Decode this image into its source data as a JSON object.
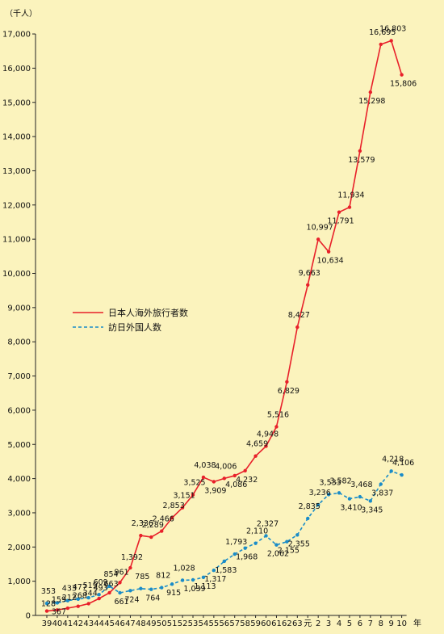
{
  "chart_data": {
    "type": "line",
    "unit_label": "（千人）",
    "xunit": "年",
    "categories": [
      "39",
      "40",
      "41",
      "42",
      "43",
      "44",
      "45",
      "46",
      "47",
      "48",
      "49",
      "50",
      "51",
      "52",
      "53",
      "54",
      "55",
      "56",
      "57",
      "58",
      "59",
      "60",
      "61",
      "62",
      "63",
      "元",
      "2",
      "3",
      "4",
      "5",
      "6",
      "7",
      "8",
      "9",
      "10"
    ],
    "ylim": [
      0,
      17000
    ],
    "yticks": [
      {
        "v": 0,
        "t": "0"
      },
      {
        "v": 1000,
        "t": "1,000"
      },
      {
        "v": 2000,
        "t": "2,000"
      },
      {
        "v": 3000,
        "t": "3,000"
      },
      {
        "v": 4000,
        "t": "4,000"
      },
      {
        "v": 5000,
        "t": "5,000"
      },
      {
        "v": 6000,
        "t": "6,000"
      },
      {
        "v": 7000,
        "t": "7,000"
      },
      {
        "v": 8000,
        "t": "8,000"
      },
      {
        "v": 9000,
        "t": "9,000"
      },
      {
        "v": 10000,
        "t": "10,000"
      },
      {
        "v": 11000,
        "t": "11,000"
      },
      {
        "v": 12000,
        "t": "12,000"
      },
      {
        "v": 13000,
        "t": "13,000"
      },
      {
        "v": 14000,
        "t": "14,000"
      },
      {
        "v": 15000,
        "t": "15,000"
      },
      {
        "v": 16000,
        "t": "16,000"
      },
      {
        "v": 17000,
        "t": "17,000"
      }
    ],
    "series": [
      {
        "name": "日本人海外旅行者数",
        "color": "#e8202a",
        "style": "solid",
        "values": [
          128,
          159,
          212,
          268,
          344,
          493,
          663,
          961,
          1392,
          2336,
          2289,
          2466,
          2853,
          3151,
          3525,
          4038,
          3909,
          4006,
          4086,
          4232,
          4659,
          4948,
          5516,
          6829,
          8427,
          9663,
          10997,
          10634,
          11791,
          11934,
          13579,
          15298,
          16695,
          16803,
          15806
        ],
        "labels": [
          "128",
          "159",
          "212",
          "268",
          "344",
          "493",
          "663",
          "961",
          "1,392",
          "2,336",
          "2,289",
          "2,466",
          "2,853",
          "3,151",
          "3,525",
          "4,038",
          "3,909",
          "4,006",
          "4,086",
          "4,232",
          "4,659",
          "4,948",
          "5,516",
          "6,829",
          "8,427",
          "9,663",
          "10,997",
          "10,634",
          "11,791",
          "11,934",
          "13,579",
          "15,298",
          "16,695",
          "16,803",
          "15,806"
        ]
      },
      {
        "name": "訪日外国人数",
        "color": "#1a8cc8",
        "style": "dashed",
        "values": [
          353,
          367,
          433,
          477,
          519,
          609,
          854,
          661,
          724,
          785,
          764,
          812,
          915,
          1028,
          1039,
          1113,
          1317,
          1583,
          1793,
          1968,
          2110,
          2327,
          2062,
          2155,
          2355,
          2835,
          3236,
          3533,
          3582,
          3410,
          3468,
          3345,
          3837,
          4218,
          4106
        ],
        "labels": [
          "353",
          "367",
          "433",
          "477",
          "519",
          "609",
          "854",
          "661",
          "724",
          "785",
          "764",
          "812",
          "915",
          "1,028",
          "1,039",
          "1,113",
          "1,317",
          "1,583",
          "1,793",
          "1,968",
          "2,110",
          "2,327",
          "2,062",
          "2,155",
          "2,355",
          "2,835",
          "3,236",
          "3,533",
          "3,582",
          "3,410",
          "3,468",
          "3,345",
          "3,837",
          "4,218",
          "4,106"
        ]
      }
    ]
  }
}
